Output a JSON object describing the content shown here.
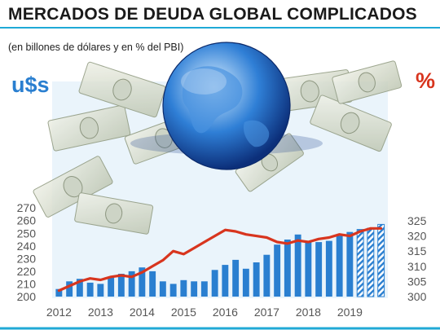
{
  "header": {
    "title": "MERCADOS DE DEUDA GLOBAL COMPLICADOS",
    "subtitle": "(en billones de dólares y en % del PBI)"
  },
  "axes": {
    "left_unit": "u$s",
    "right_unit": "%"
  },
  "colors": {
    "bars": "#2a7fd0",
    "line": "#d8351e",
    "left_unit": "#2a7fd0",
    "right_unit": "#d8351e",
    "rule": "#1fa9d6",
    "plot_bg": "#eaf4fb"
  },
  "decorations": [
    "money-stacks",
    "globe-image"
  ],
  "chart_data": {
    "type": "bar+line",
    "x_labels": [
      "2012",
      "2013",
      "2014",
      "2015",
      "2016",
      "2017",
      "2018",
      "2019"
    ],
    "y_left": {
      "ticks": [
        200,
        210,
        220,
        230,
        240,
        250,
        260,
        270
      ],
      "ylim": [
        200,
        275
      ]
    },
    "y_right": {
      "ticks": [
        300,
        305,
        310,
        315,
        320,
        325
      ],
      "ylim": [
        300,
        327.5
      ]
    },
    "series": [
      {
        "type": "bar",
        "axis": "left",
        "values": [
          206,
          212,
          214,
          211,
          210,
          215,
          218,
          220,
          223,
          220,
          212,
          210,
          213,
          212,
          212,
          221,
          225,
          229,
          222,
          227,
          233,
          241,
          245,
          249,
          244,
          243,
          244,
          248,
          251,
          253,
          254,
          257
        ],
        "hatched_last": 3
      },
      {
        "type": "line",
        "axis": "right",
        "values": [
          302,
          303.5,
          305,
          306,
          305.5,
          306.5,
          307,
          306.5,
          308,
          310,
          312,
          315,
          314,
          316,
          318,
          320,
          322,
          321.5,
          320.5,
          320,
          319.5,
          318,
          317.5,
          318.5,
          318,
          319,
          319.5,
          320.5,
          320,
          321.5,
          322.5,
          322.5
        ]
      }
    ],
    "bar_ticks_per_year": 4,
    "grid": false,
    "legend": "none"
  }
}
